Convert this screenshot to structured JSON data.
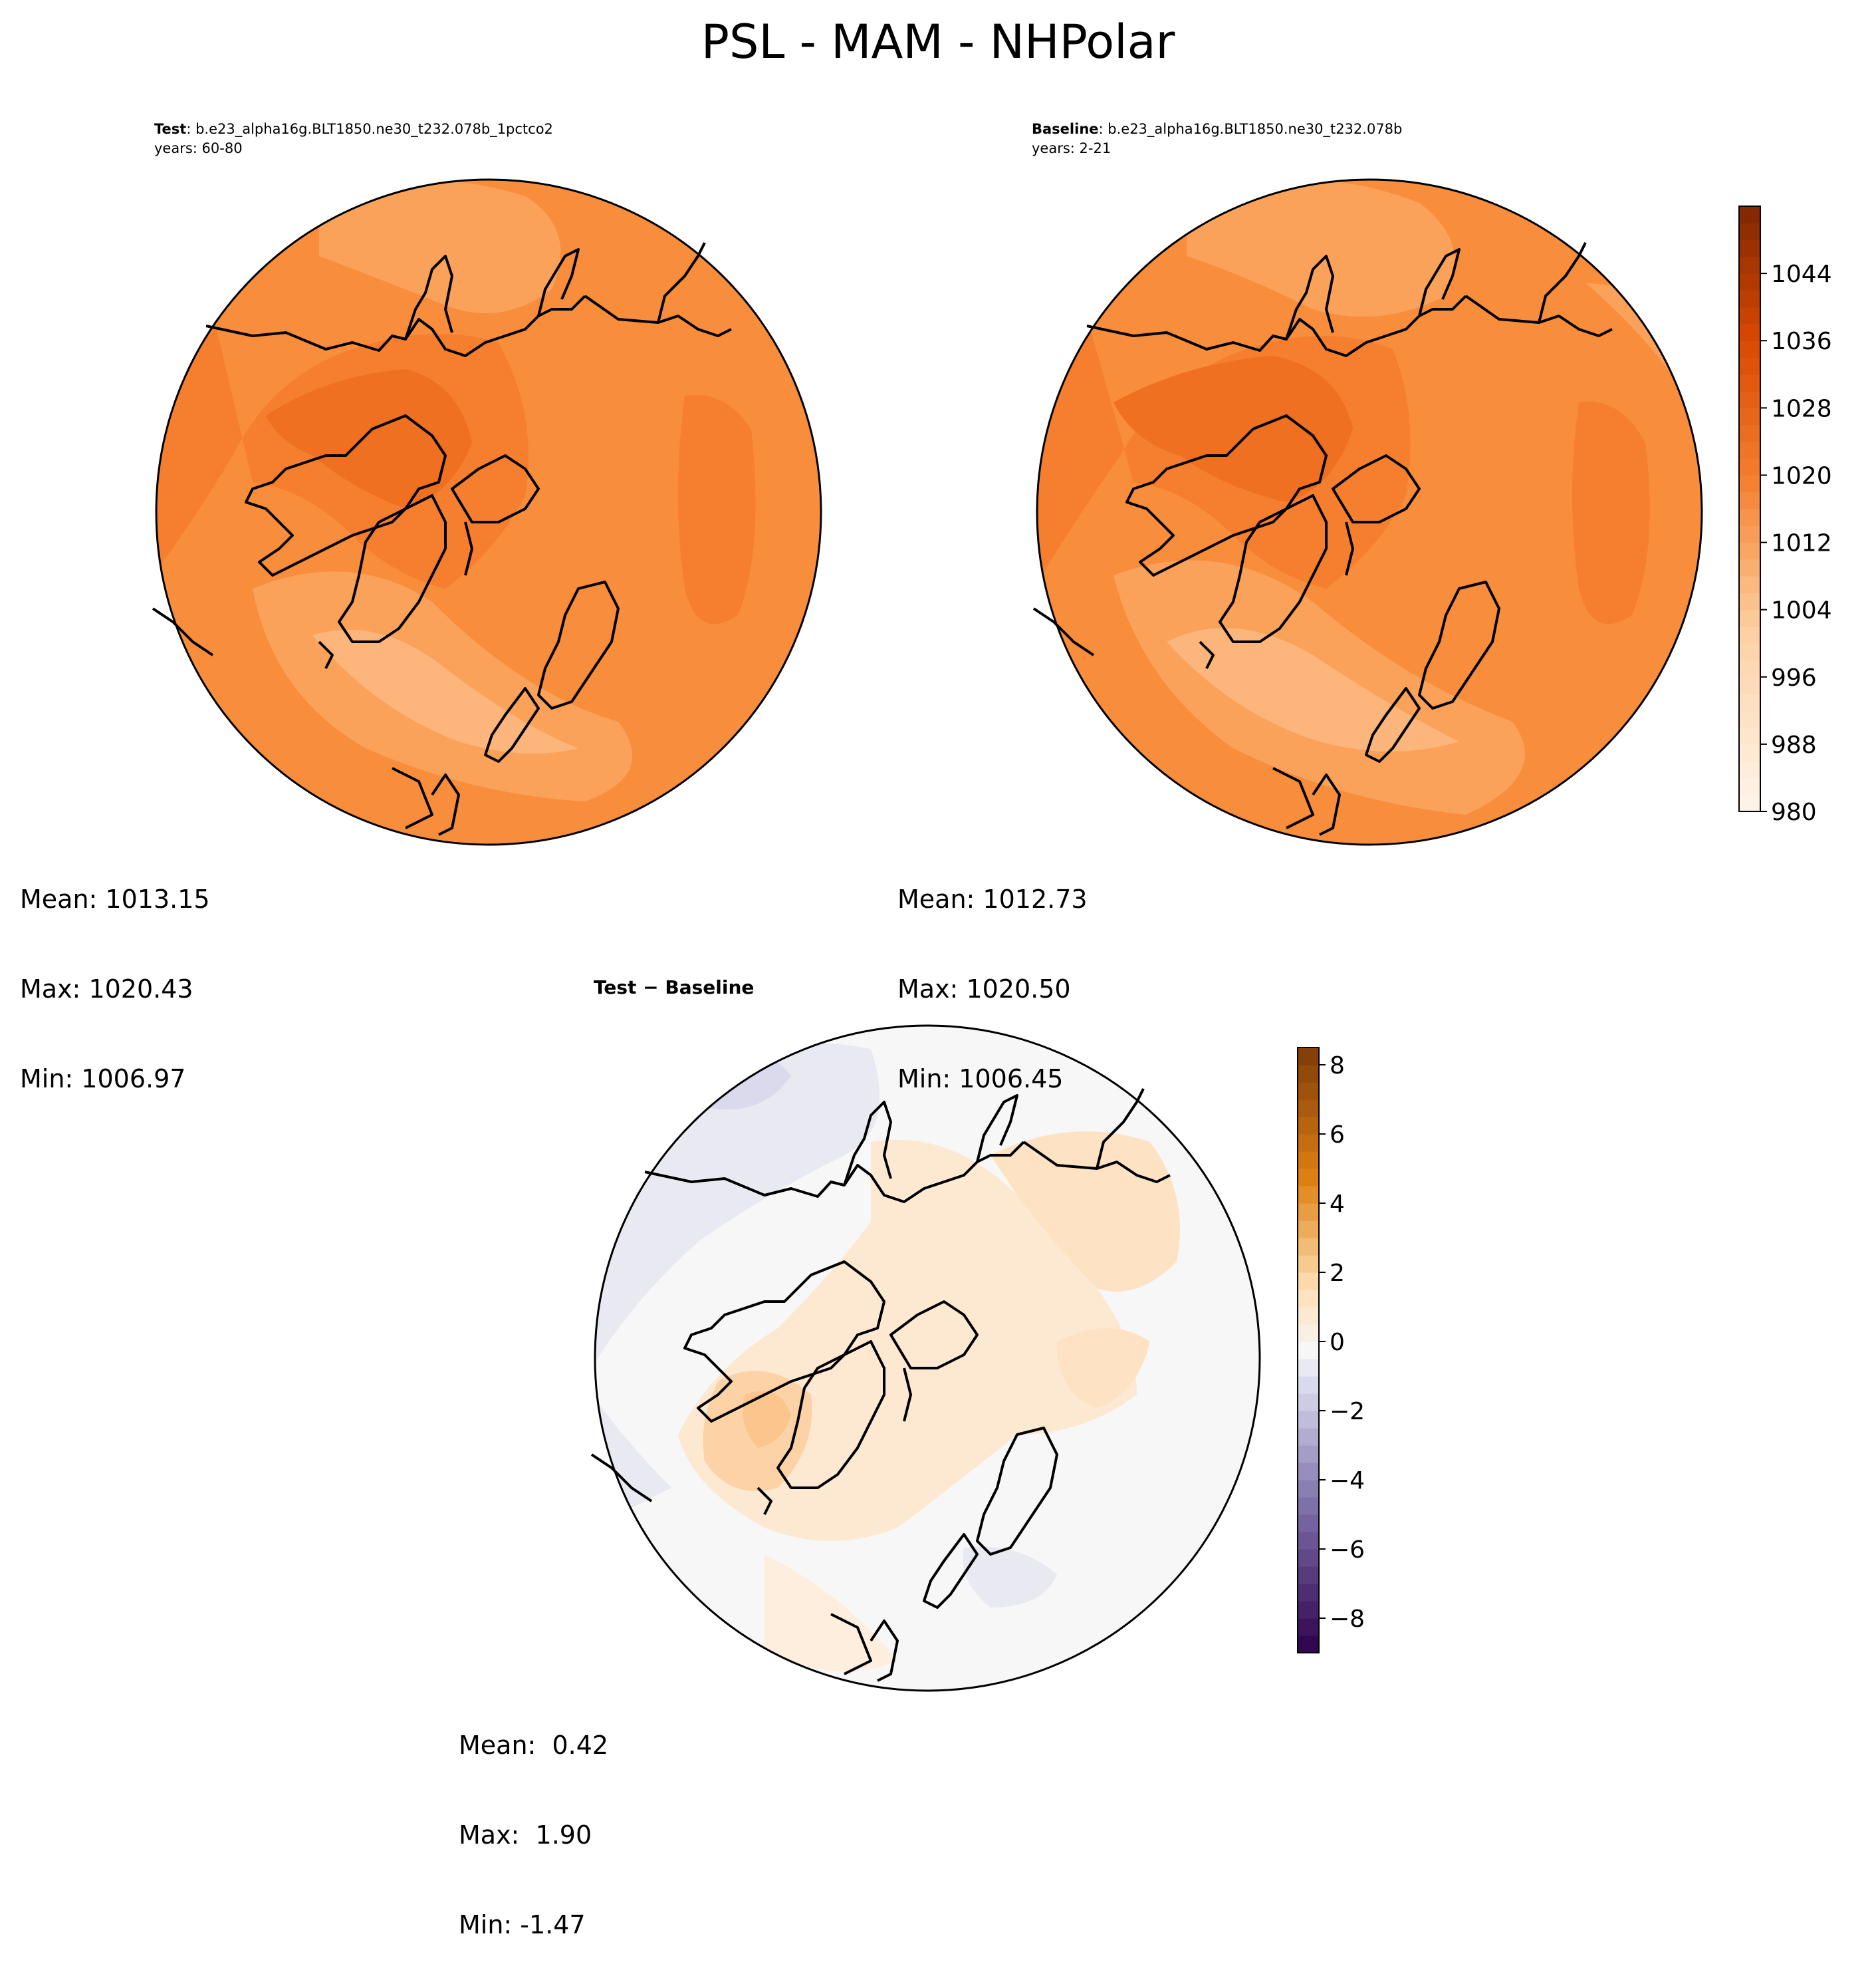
{
  "figure": {
    "title": "PSL - MAM - NHPolar"
  },
  "panels": {
    "test": {
      "label": "Test",
      "case": ": b.e23_alpha16g.BLT1850.ne30_t232.078b_1pctco2",
      "years": "years: 60-80",
      "stats": {
        "mean": "Mean: 1013.15",
        "max": "Max: 1020.43",
        "min": "Min: 1006.97"
      }
    },
    "baseline": {
      "label": "Baseline",
      "case": ": b.e23_alpha16g.BLT1850.ne30_t232.078b",
      "years": "years: 2-21",
      "stats": {
        "mean": "Mean: 1012.73",
        "max": "Max: 1020.50",
        "min": "Min: 1006.45"
      }
    },
    "diff": {
      "label": "Test − Baseline",
      "stats": {
        "mean": "Mean:  0.42",
        "max": "Max:  1.90",
        "min": "Min: -1.47"
      }
    }
  },
  "chart_data": [
    {
      "type": "heatmap",
      "name": "test",
      "projection": "north polar stereographic",
      "colormap": "Oranges",
      "levels": [
        980,
        1052
      ],
      "summary": {
        "mean": 1013.15,
        "max": 1020.43,
        "min": 1006.97
      },
      "colorbar_ticks": [
        "980",
        "988",
        "996",
        "1004",
        "1012",
        "1020",
        "1028",
        "1036",
        "1044"
      ]
    },
    {
      "type": "heatmap",
      "name": "baseline",
      "projection": "north polar stereographic",
      "colormap": "Oranges",
      "levels": [
        980,
        1052
      ],
      "summary": {
        "mean": 1012.73,
        "max": 1020.5,
        "min": 1006.45
      },
      "colorbar_ticks": [
        "980",
        "988",
        "996",
        "1004",
        "1012",
        "1020",
        "1028",
        "1036",
        "1044"
      ]
    },
    {
      "type": "heatmap",
      "name": "difference",
      "projection": "north polar stereographic",
      "colormap": "PuOr_r",
      "levels": [
        -9,
        8.5
      ],
      "summary": {
        "mean": 0.42,
        "max": 1.9,
        "min": -1.47
      },
      "colorbar_ticks": [
        "−8",
        "−6",
        "−4",
        "−2",
        "0",
        "2",
        "4",
        "6",
        "8"
      ]
    }
  ],
  "colors": {
    "orange_dark": "#7f2704",
    "orange_mid": "#f57f2e",
    "orange_field": "#f88d3c",
    "orange_light": "#fdd0a2",
    "orange_white": "#fff5eb",
    "purple_dark": "#2d004b",
    "brown_dark": "#7f3b08",
    "diff_neutral": "#f7f7f7"
  }
}
